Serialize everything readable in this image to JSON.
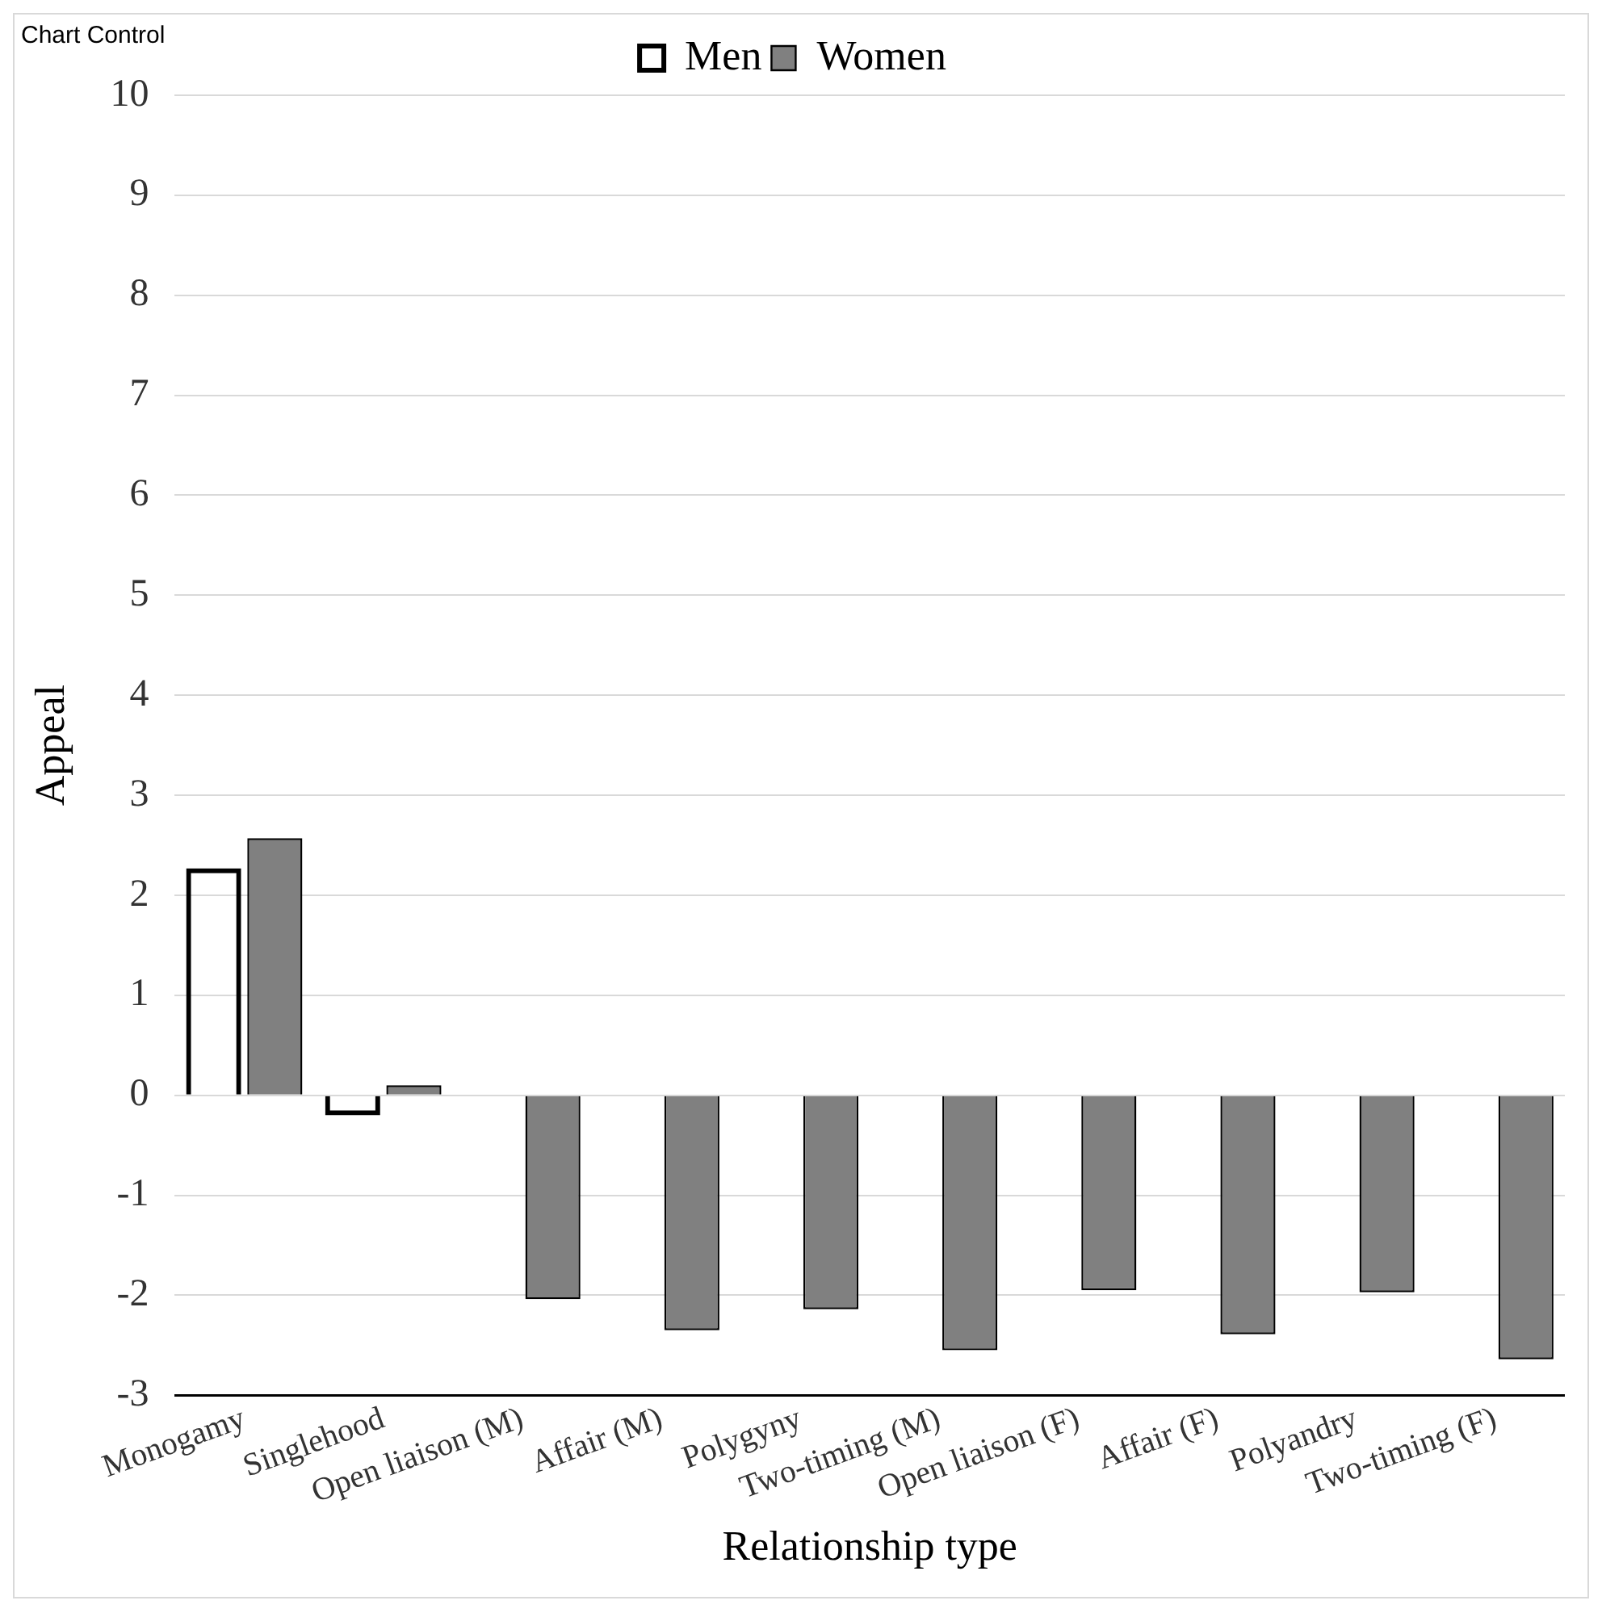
{
  "chart_data": {
    "type": "bar",
    "xlabel": "Relationship type",
    "ylabel": "Appeal",
    "categories": [
      "Monogamy",
      "Singlehood",
      "Open liaison (M)",
      "Affair (M)",
      "Polygyny",
      "Two-timing (M)",
      "Open liaison (F)",
      "Affair (F)",
      "Polyandry",
      "Two-timing (F)"
    ],
    "series": [
      {
        "name": "Men",
        "color": "#000000",
        "values": [
          2.27,
          -0.2,
          null,
          null,
          null,
          null,
          null,
          null,
          null,
          null
        ]
      },
      {
        "name": "Women",
        "color": "#808080",
        "values": [
          2.57,
          0.1,
          -2.04,
          -2.35,
          -2.14,
          -2.55,
          -1.95,
          -2.39,
          -1.97,
          -2.64
        ]
      }
    ],
    "ylim": [
      -3,
      10
    ],
    "yticks": [
      -3,
      -2,
      -1,
      0,
      1,
      2,
      3,
      4,
      5,
      6,
      7,
      8,
      9,
      10
    ],
    "grid": "y",
    "legend": "top",
    "annotations": [
      "Chart Control"
    ]
  }
}
